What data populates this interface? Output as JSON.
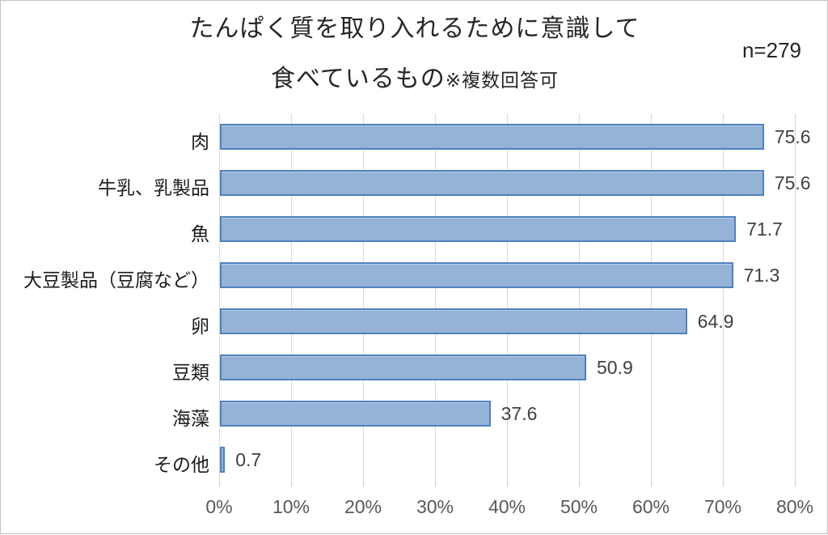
{
  "header": {
    "title_line1": "たんぱく質を取り入れるために意識して",
    "title_line2_main": "食べているもの",
    "title_line2_note": "※複数回答可",
    "sample_size": "n=279"
  },
  "chart_data": {
    "type": "bar",
    "orientation": "horizontal",
    "title": "たんぱく質を取り入れるために意識して食べているもの ※複数回答可",
    "categories": [
      "肉",
      "牛乳、乳製品",
      "魚",
      "大豆製品（豆腐など）",
      "卵",
      "豆類",
      "海藻",
      "その他"
    ],
    "values": [
      75.6,
      75.6,
      71.7,
      71.3,
      64.9,
      50.9,
      37.6,
      0.7
    ],
    "value_labels": [
      "75.6",
      "75.6",
      "71.7",
      "71.3",
      "64.9",
      "50.9",
      "37.6",
      "0.7"
    ],
    "xlabel": "",
    "ylabel": "",
    "xlim": [
      0,
      80
    ],
    "x_ticks": [
      "0%",
      "10%",
      "20%",
      "30%",
      "40%",
      "50%",
      "60%",
      "70%",
      "80%"
    ],
    "x_tick_values": [
      0,
      10,
      20,
      30,
      40,
      50,
      60,
      70,
      80
    ],
    "grid": true,
    "legend": false,
    "colors": {
      "bar_fill": "#95b3d7",
      "bar_border": "#4f81bd",
      "gridline": "#d9d9d9",
      "axis_text": "#595959",
      "value_text": "#404040",
      "category_text": "#1a1a1a",
      "title_text": "#262626"
    }
  }
}
